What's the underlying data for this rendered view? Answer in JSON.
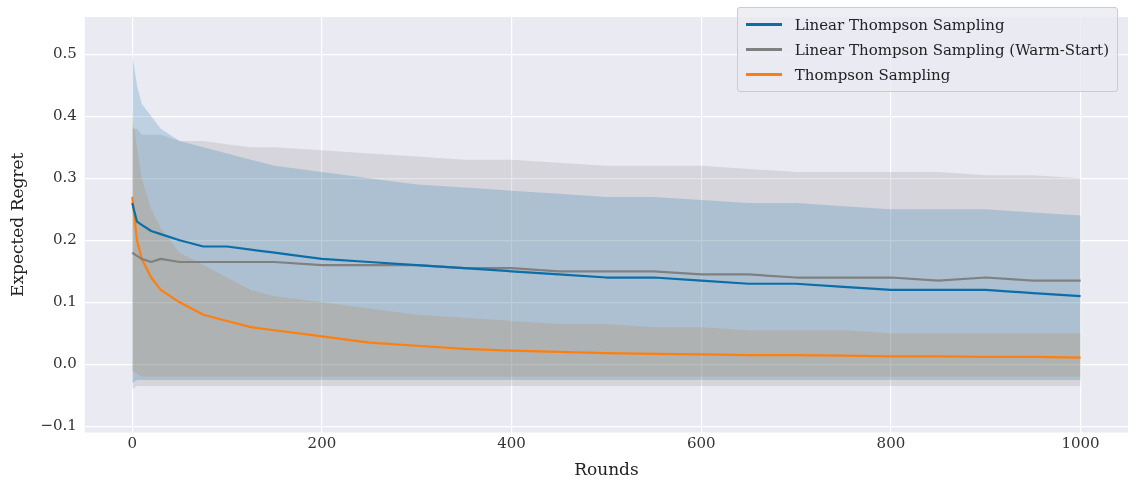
{
  "chart_data": {
    "type": "line",
    "xlabel": "Rounds",
    "ylabel": "Expected Regret",
    "x": [
      0,
      5,
      10,
      20,
      30,
      50,
      75,
      100,
      125,
      150,
      200,
      250,
      300,
      350,
      400,
      450,
      500,
      550,
      600,
      650,
      700,
      750,
      800,
      850,
      900,
      950,
      1000
    ],
    "series": [
      {
        "name": "Linear Thompson Sampling",
        "color": "#0b6ea8",
        "values": [
          0.26,
          0.23,
          0.225,
          0.215,
          0.21,
          0.2,
          0.19,
          0.19,
          0.185,
          0.18,
          0.17,
          0.165,
          0.16,
          0.155,
          0.15,
          0.145,
          0.14,
          0.14,
          0.135,
          0.13,
          0.13,
          0.125,
          0.12,
          0.12,
          0.12,
          0.115,
          0.11
        ],
        "upper": [
          0.5,
          0.45,
          0.42,
          0.4,
          0.38,
          0.36,
          0.35,
          0.34,
          0.33,
          0.32,
          0.31,
          0.3,
          0.29,
          0.285,
          0.28,
          0.275,
          0.27,
          0.27,
          0.265,
          0.26,
          0.26,
          0.255,
          0.25,
          0.25,
          0.25,
          0.245,
          0.24
        ],
        "lower": [
          -0.03,
          -0.025,
          -0.025,
          -0.025,
          -0.025,
          -0.025,
          -0.025,
          -0.025,
          -0.025,
          -0.025,
          -0.025,
          -0.025,
          -0.025,
          -0.025,
          -0.025,
          -0.025,
          -0.025,
          -0.025,
          -0.025,
          -0.025,
          -0.025,
          -0.025,
          -0.025,
          -0.025,
          -0.025,
          -0.025,
          -0.025
        ]
      },
      {
        "name": "Linear Thompson Sampling (Warm-Start)",
        "color": "#808080",
        "values": [
          0.18,
          0.175,
          0.17,
          0.165,
          0.17,
          0.165,
          0.165,
          0.165,
          0.165,
          0.165,
          0.16,
          0.16,
          0.16,
          0.155,
          0.155,
          0.15,
          0.15,
          0.15,
          0.145,
          0.145,
          0.14,
          0.14,
          0.14,
          0.135,
          0.14,
          0.135,
          0.135
        ],
        "upper": [
          0.38,
          0.38,
          0.37,
          0.37,
          0.37,
          0.36,
          0.36,
          0.355,
          0.35,
          0.35,
          0.345,
          0.34,
          0.335,
          0.33,
          0.33,
          0.325,
          0.32,
          0.32,
          0.32,
          0.315,
          0.31,
          0.31,
          0.31,
          0.31,
          0.305,
          0.305,
          0.3
        ],
        "lower": [
          -0.04,
          -0.035,
          -0.035,
          -0.035,
          -0.035,
          -0.035,
          -0.035,
          -0.035,
          -0.035,
          -0.035,
          -0.035,
          -0.035,
          -0.035,
          -0.035,
          -0.035,
          -0.035,
          -0.035,
          -0.035,
          -0.035,
          -0.035,
          -0.035,
          -0.035,
          -0.035,
          -0.035,
          -0.035,
          -0.035,
          -0.035
        ]
      },
      {
        "name": "Thompson Sampling",
        "color": "#ff7f0e",
        "values": [
          0.27,
          0.2,
          0.17,
          0.14,
          0.12,
          0.1,
          0.08,
          0.07,
          0.06,
          0.055,
          0.045,
          0.035,
          0.03,
          0.025,
          0.022,
          0.02,
          0.018,
          0.017,
          0.016,
          0.015,
          0.015,
          0.014,
          0.013,
          0.013,
          0.012,
          0.012,
          0.011
        ],
        "upper": [
          0.4,
          0.35,
          0.3,
          0.25,
          0.22,
          0.18,
          0.16,
          0.14,
          0.12,
          0.11,
          0.1,
          0.09,
          0.08,
          0.075,
          0.07,
          0.065,
          0.065,
          0.06,
          0.06,
          0.055,
          0.055,
          0.055,
          0.05,
          0.05,
          0.05,
          0.05,
          0.05
        ],
        "lower": [
          -0.01,
          -0.015,
          -0.02,
          -0.02,
          -0.02,
          -0.02,
          -0.02,
          -0.02,
          -0.02,
          -0.02,
          -0.02,
          -0.02,
          -0.02,
          -0.02,
          -0.02,
          -0.02,
          -0.02,
          -0.02,
          -0.02,
          -0.02,
          -0.02,
          -0.02,
          -0.02,
          -0.02,
          -0.02,
          -0.02,
          -0.02
        ]
      }
    ],
    "xlim": [
      -50,
      1050
    ],
    "xticks": [
      0,
      200,
      400,
      600,
      800,
      1000
    ],
    "ylim": [
      -0.11,
      0.56
    ],
    "yticks": [
      {
        "value": -0.1,
        "label": "−0.1"
      },
      {
        "value": 0,
        "label": "0.0"
      },
      0.1,
      0.2,
      0.3,
      0.4,
      0.5
    ],
    "grid": true,
    "legend": "top right",
    "marker": "none",
    "line_style": "solid"
  }
}
